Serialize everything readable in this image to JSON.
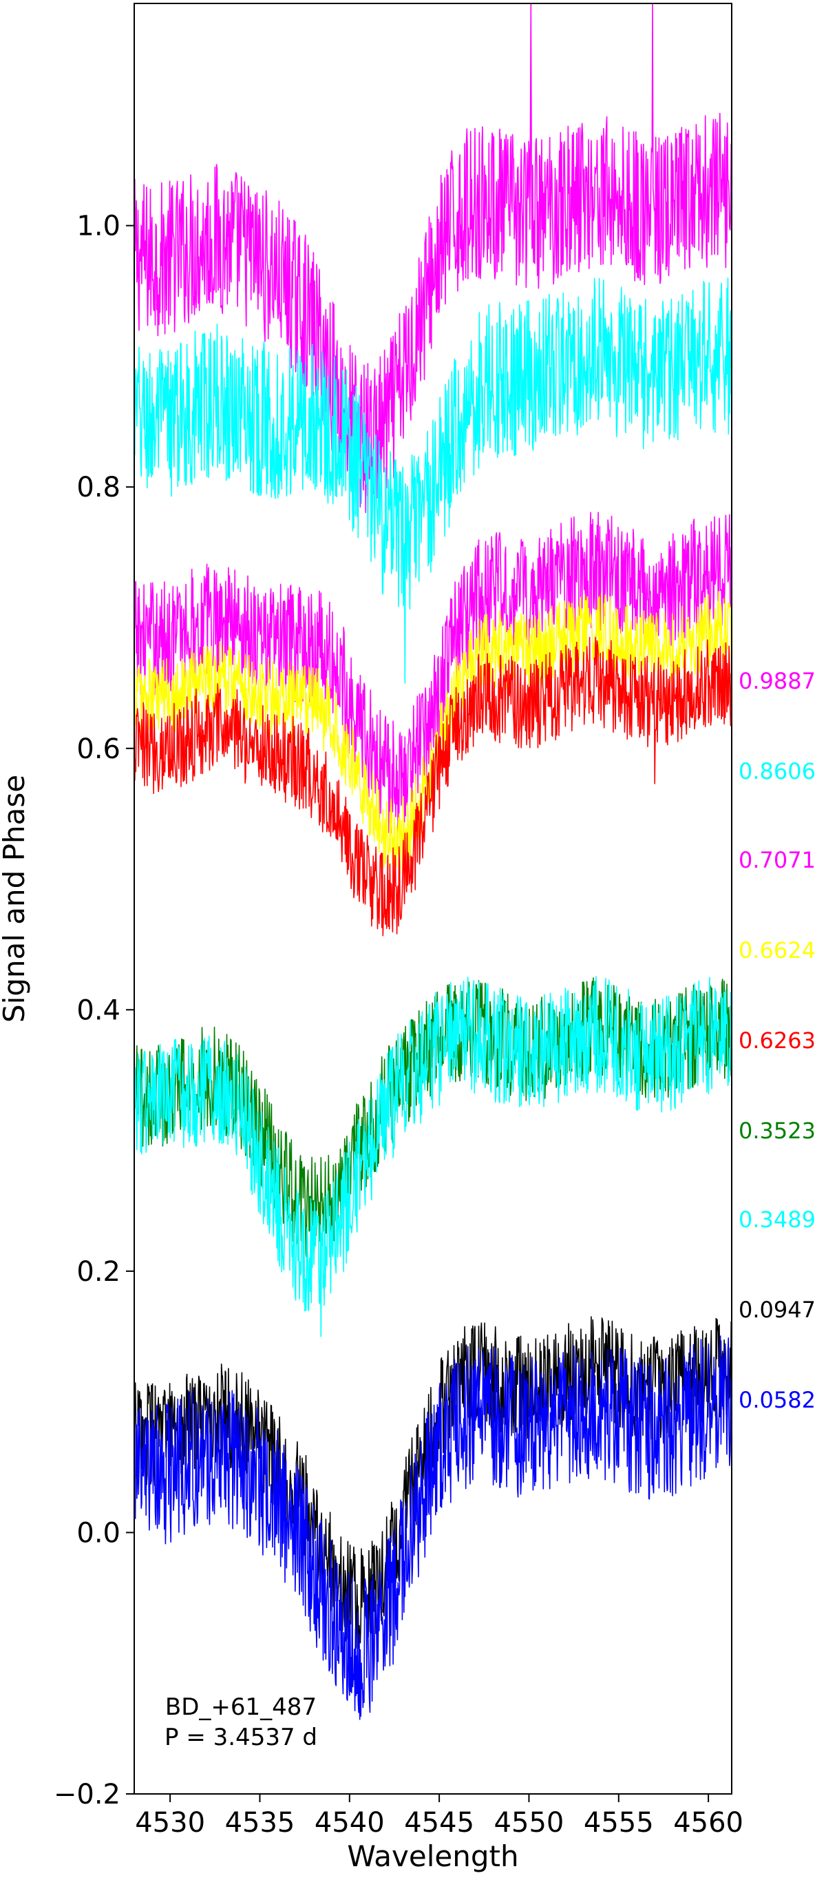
{
  "chart_data": {
    "type": "line",
    "title": "",
    "xlabel": "Wavelength",
    "ylabel": "Signal and Phase",
    "xlim": [
      4528,
      4561.3
    ],
    "ylim": [
      -0.2,
      1.17
    ],
    "xticks": [
      4530,
      4535,
      4540,
      4545,
      4550,
      4555,
      4560
    ],
    "yticks": [
      -0.2,
      0.0,
      0.2,
      0.4,
      0.6,
      0.8,
      1.0
    ],
    "ytick_labels": [
      "−0.2",
      "0.0",
      "0.2",
      "0.4",
      "0.6",
      "0.8",
      "1.0"
    ],
    "grid": false,
    "legend": "none",
    "annotation": {
      "lines": [
        "BD_+61_487",
        "P = 3.4537 d"
      ],
      "x": 4534,
      "y": -0.15
    },
    "line_center": 4540.8,
    "series": [
      {
        "phase_label": "0.9887",
        "color": "#ff00ff",
        "baseline": 1.0,
        "depth": 0.15,
        "center": 4541,
        "noise": 0.06,
        "label_y": 0.652,
        "spikes": [
          [
            4550.1,
            1.17
          ],
          [
            4556.9,
            1.17
          ]
        ]
      },
      {
        "phase_label": "0.8606",
        "color": "#00ffff",
        "baseline": 0.875,
        "depth": 0.09,
        "center": 4543,
        "noise": 0.06,
        "label_y": 0.583,
        "spikes": [
          [
            4543.1,
            0.65
          ]
        ]
      },
      {
        "phase_label": "0.7071",
        "color": "#ff00ff",
        "baseline": 0.71,
        "depth": 0.11,
        "center": 4542.5,
        "noise": 0.045,
        "label_y": 0.515,
        "spikes": []
      },
      {
        "phase_label": "0.6624",
        "color": "#ffff00",
        "baseline": 0.665,
        "depth": 0.11,
        "center": 4542.5,
        "noise": 0.03,
        "label_y": 0.446,
        "spikes": []
      },
      {
        "phase_label": "0.6263",
        "color": "#ff0000",
        "baseline": 0.625,
        "depth": 0.12,
        "center": 4541.8,
        "noise": 0.035,
        "label_y": 0.377,
        "spikes": [
          [
            4557,
            0.573
          ]
        ]
      },
      {
        "phase_label": "0.3523",
        "color": "#008000",
        "baseline": 0.36,
        "depth": 0.1,
        "center": 4538.5,
        "noise": 0.04,
        "label_y": 0.308,
        "spikes": []
      },
      {
        "phase_label": "0.3489",
        "color": "#00ffff",
        "baseline": 0.355,
        "depth": 0.13,
        "center": 4538.3,
        "noise": 0.045,
        "label_y": 0.24,
        "spikes": [
          [
            4538.4,
            0.15
          ]
        ]
      },
      {
        "phase_label": "0.0947",
        "color": "#000000",
        "baseline": 0.1,
        "depth": 0.14,
        "center": 4540.5,
        "noise": 0.04,
        "label_y": 0.171,
        "spikes": []
      },
      {
        "phase_label": "0.0582",
        "color": "#0000ff",
        "baseline": 0.07,
        "depth": 0.15,
        "center": 4540.5,
        "noise": 0.055,
        "label_y": 0.102,
        "spikes": [
          [
            4540.8,
            -0.13
          ]
        ]
      }
    ]
  }
}
